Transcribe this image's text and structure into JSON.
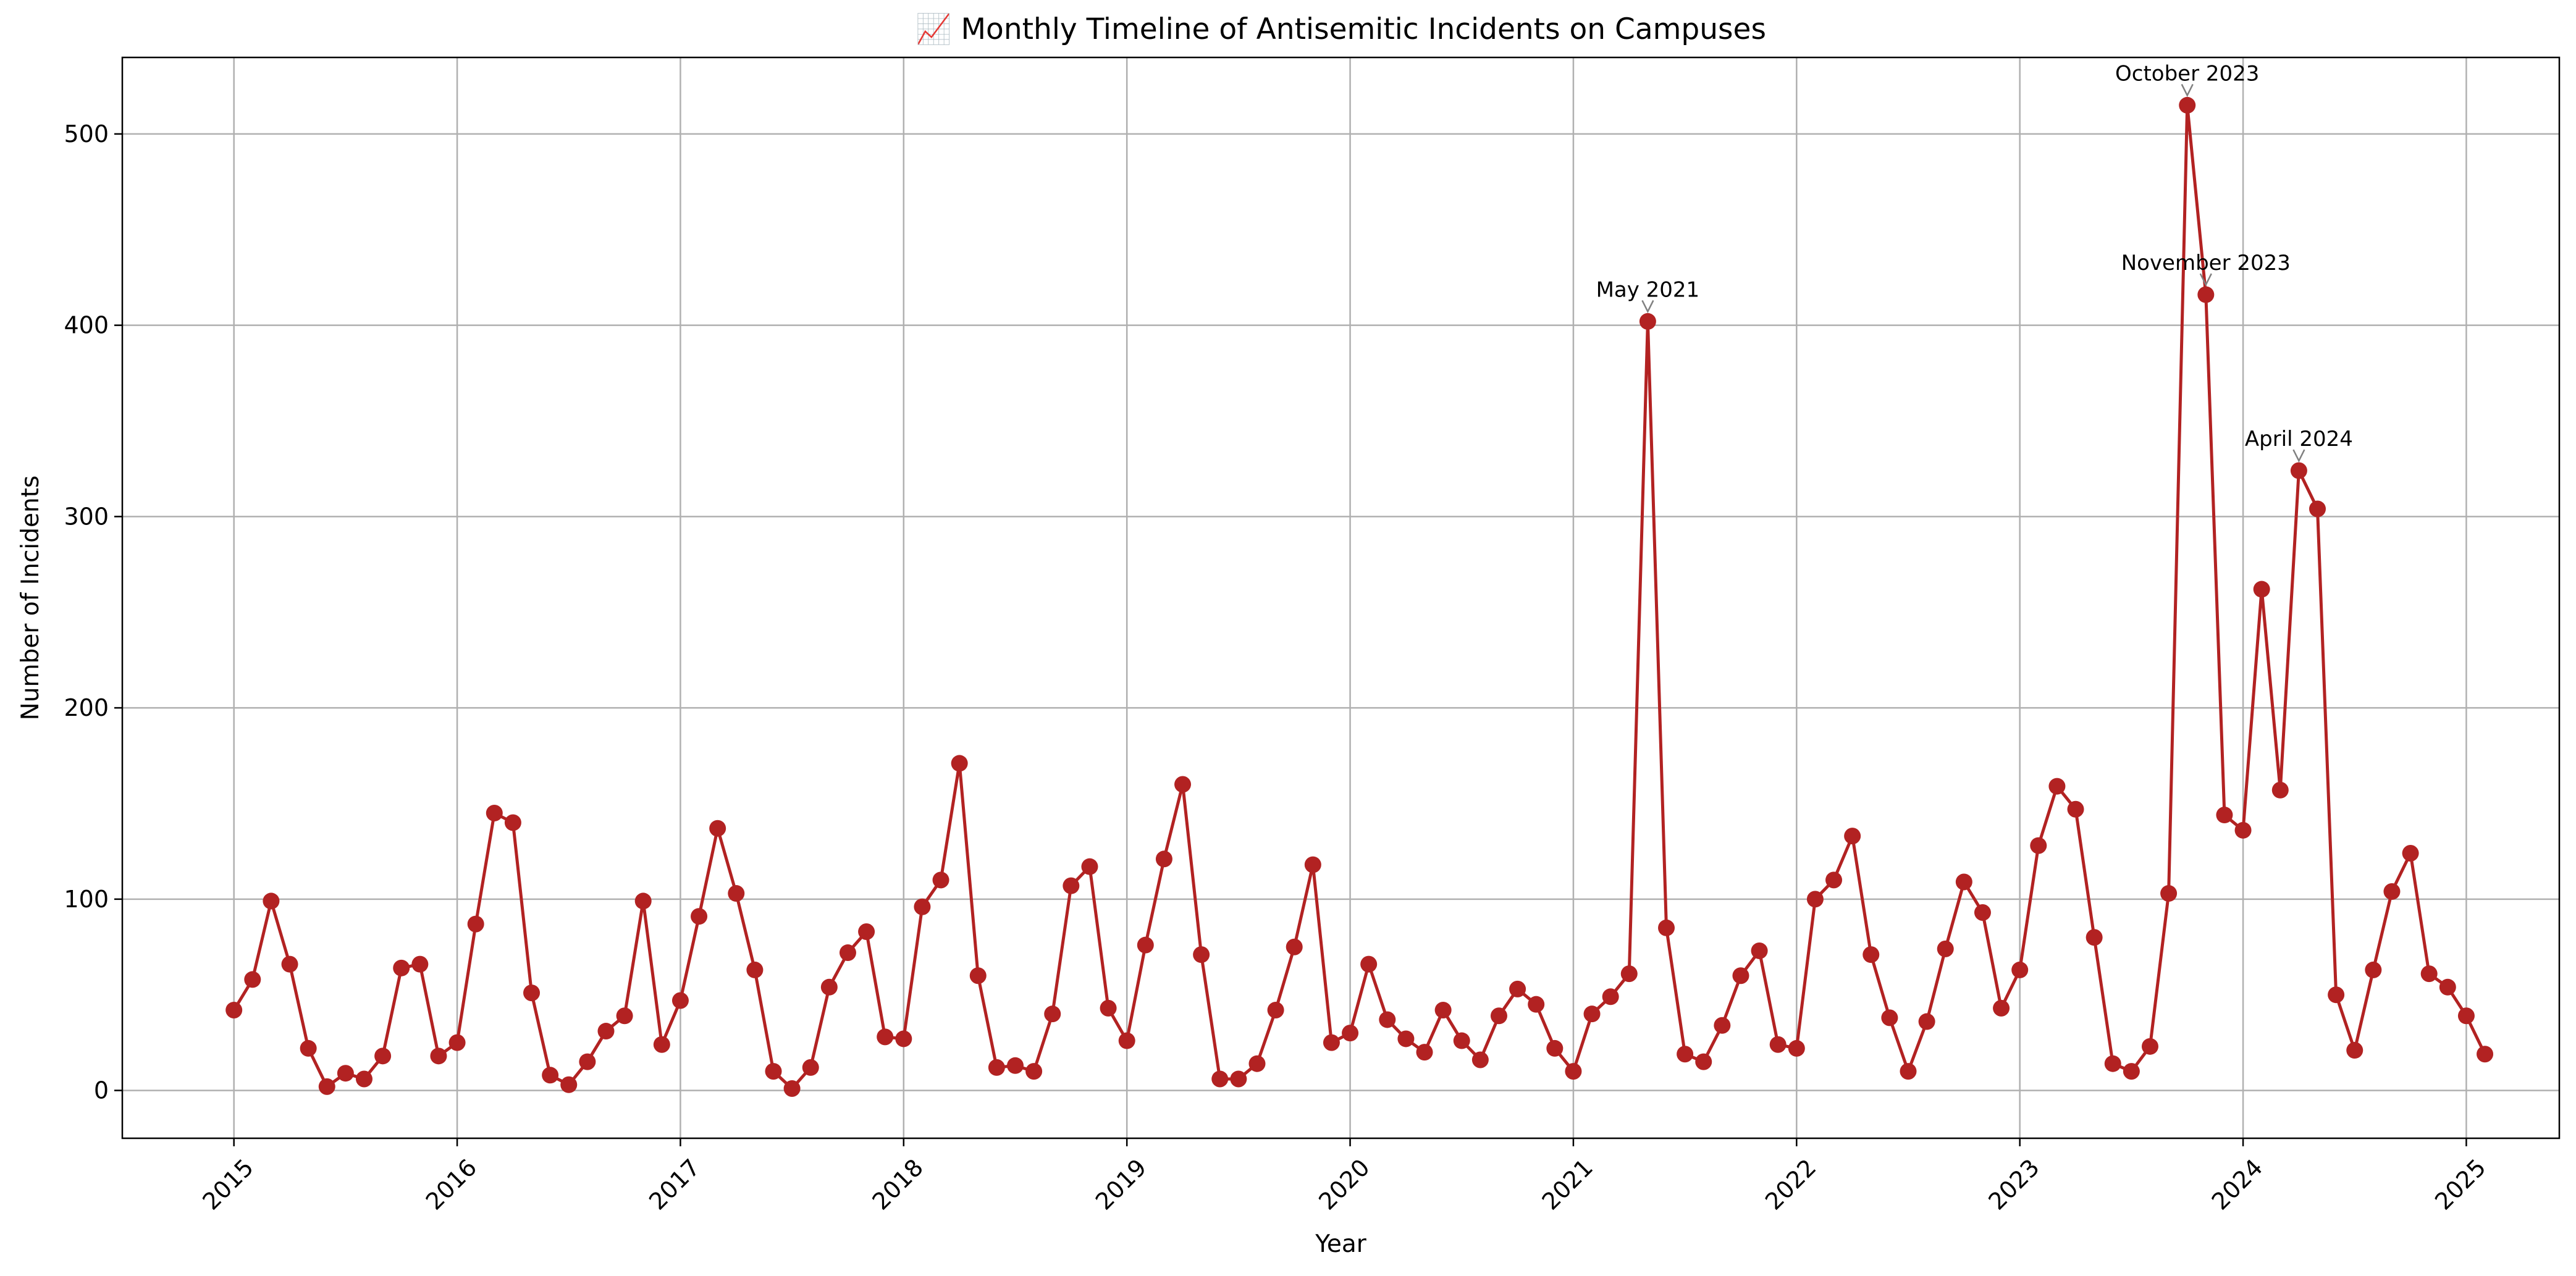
{
  "chart_data": {
    "type": "line",
    "title": "📈 Monthly Timeline of Antisemitic Incidents on Campuses",
    "xlabel": "Year",
    "ylabel": "Number of Incidents",
    "x_start": "2015-01",
    "x_ticks": [
      "2015",
      "2016",
      "2017",
      "2018",
      "2019",
      "2020",
      "2021",
      "2022",
      "2023",
      "2024",
      "2025"
    ],
    "y_ticks": [
      "0",
      "100",
      "200",
      "300",
      "400",
      "500"
    ],
    "xlim": [
      "2014-07",
      "2025-06"
    ],
    "ylim": [
      -25,
      540
    ],
    "grid": true,
    "colors": {
      "line": "#b22222",
      "marker": "#b22222",
      "grid": "#b0b0b0",
      "annotation_arrow": "#808080"
    },
    "series": [
      {
        "values": [
          42,
          58,
          99,
          66,
          22,
          2,
          9,
          6,
          18,
          64,
          66,
          18,
          25,
          87,
          145,
          140,
          51,
          8,
          3,
          15,
          31,
          39,
          99,
          24,
          47,
          91,
          137,
          103,
          63,
          10,
          1,
          12,
          54,
          72,
          83,
          28,
          27,
          96,
          110,
          171,
          60,
          12,
          13,
          10,
          40,
          107,
          117,
          43,
          26,
          76,
          121,
          160,
          71,
          6,
          6,
          14,
          42,
          75,
          118,
          25,
          30,
          66,
          37,
          27,
          20,
          42,
          26,
          16,
          39,
          53,
          45,
          22,
          10,
          40,
          49,
          61,
          402,
          85,
          19,
          15,
          34,
          60,
          73,
          24,
          22,
          100,
          110,
          133,
          71,
          38,
          10,
          36,
          74,
          109,
          93,
          43,
          63,
          128,
          159,
          147,
          80,
          14,
          10,
          23,
          103,
          515,
          416,
          144,
          136,
          262,
          157,
          324,
          304,
          50,
          21,
          63,
          104,
          124,
          61,
          54,
          39,
          19
        ]
      }
    ],
    "annotations": [
      {
        "label": "May 2021",
        "x": "2021-05",
        "y": 402
      },
      {
        "label": "October 2023",
        "x": "2023-10",
        "y": 515
      },
      {
        "label": "November 2023",
        "x": "2023-11",
        "y": 416
      },
      {
        "label": "April 2024",
        "x": "2024-04",
        "y": 324
      }
    ]
  }
}
